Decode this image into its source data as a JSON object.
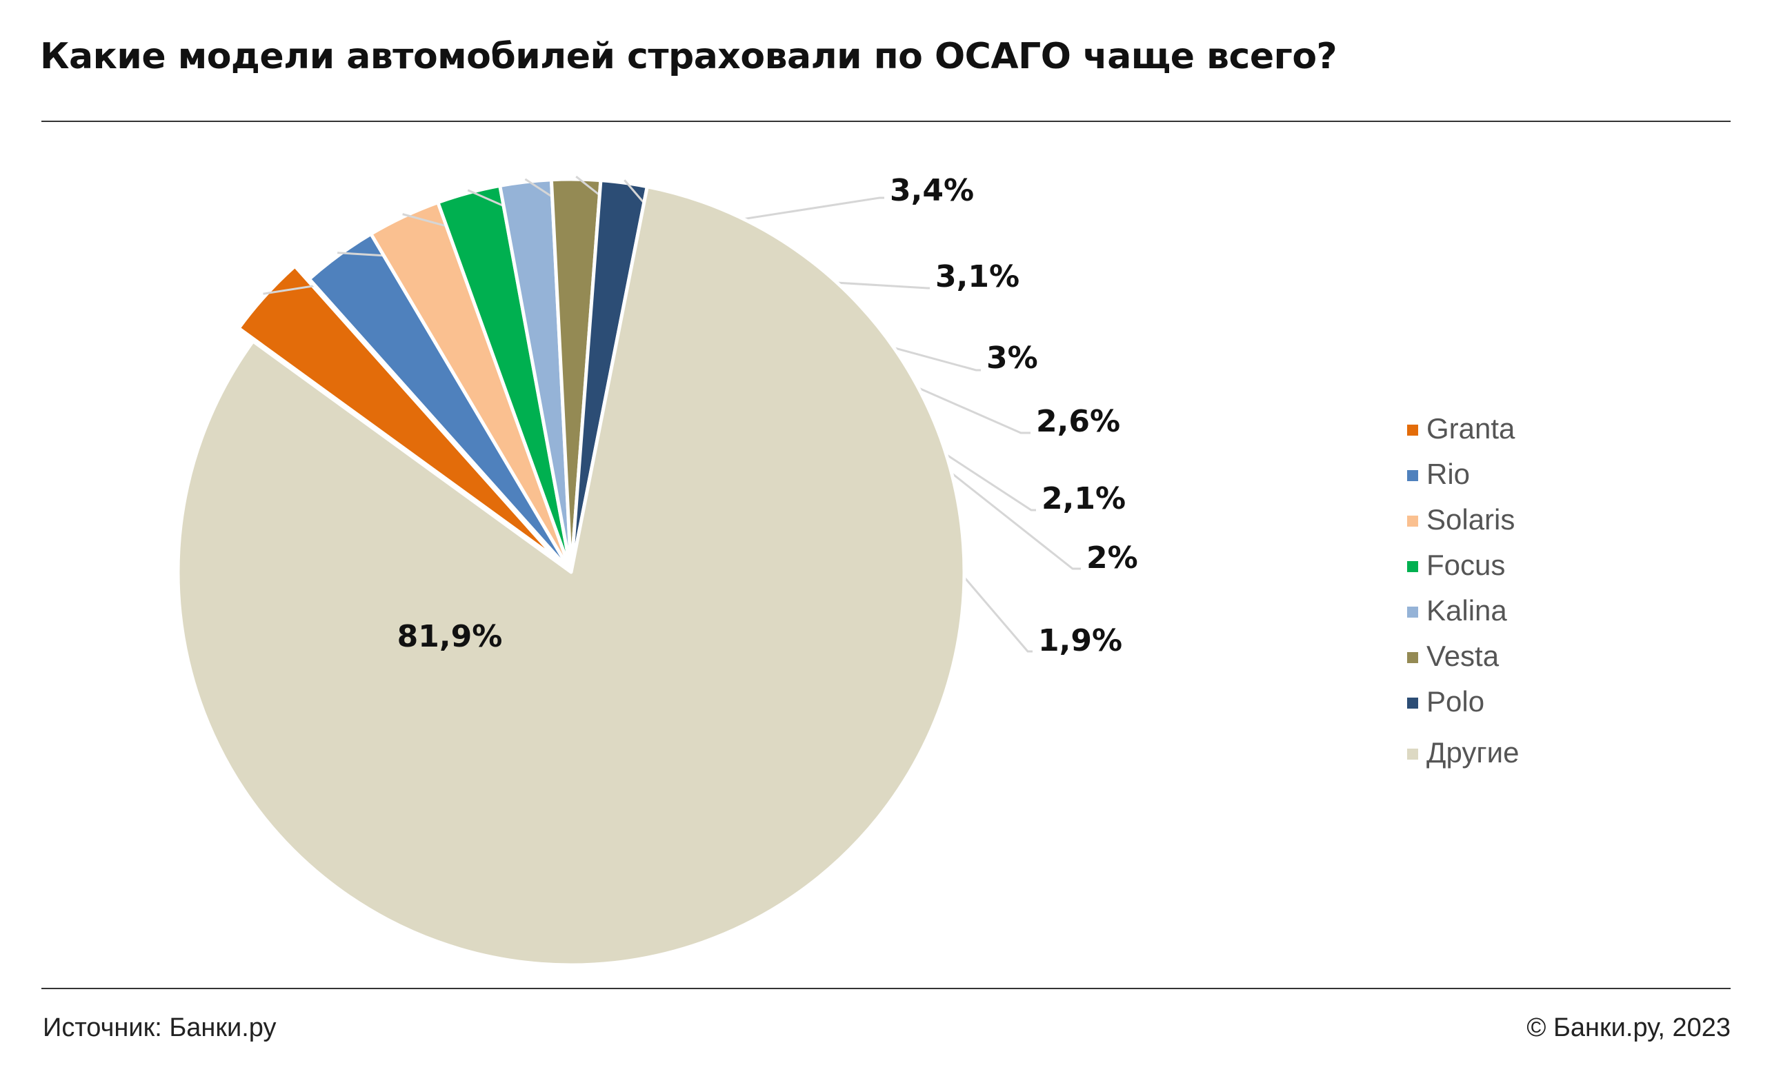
{
  "title": "Какие модели автомобилей страховали по ОСАГО чаще всего?",
  "footer": {
    "source": "Источник: Банки.ру",
    "copyright": "© Банки.ру, 2023"
  },
  "chart_data": {
    "type": "pie",
    "title": "Какие модели автомобилей страховали по ОСАГО чаще всего?",
    "legend_position": "right",
    "exploded_slice": "Granta",
    "slices": [
      {
        "name": "Granta",
        "value": 3.4,
        "label": "3,4%",
        "color": "#E36C0A"
      },
      {
        "name": "Rio",
        "value": 3.1,
        "label": "3,1%",
        "color": "#4F81BD"
      },
      {
        "name": "Solaris",
        "value": 3.0,
        "label": "3%",
        "color": "#FAC090"
      },
      {
        "name": "Focus",
        "value": 2.6,
        "label": "2,6%",
        "color": "#00B050"
      },
      {
        "name": "Kalina",
        "value": 2.1,
        "label": "2,1%",
        "color": "#95B3D7"
      },
      {
        "name": "Vesta",
        "value": 2.0,
        "label": "2%",
        "color": "#948A54"
      },
      {
        "name": "Polo",
        "value": 1.9,
        "label": "1,9%",
        "color": "#2C4D75"
      },
      {
        "name": "Другие",
        "value": 81.9,
        "label": "81,9%",
        "color": "#DDD9C3"
      }
    ]
  }
}
